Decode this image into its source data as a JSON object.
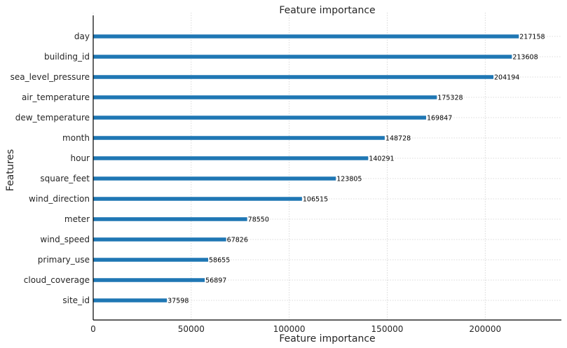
{
  "chart_data": {
    "type": "bar",
    "orientation": "horizontal",
    "title": "Feature importance",
    "xlabel": "Feature importance",
    "ylabel": "Features",
    "categories": [
      "day",
      "building_id",
      "sea_level_pressure",
      "air_temperature",
      "dew_temperature",
      "month",
      "hour",
      "square_feet",
      "wind_direction",
      "meter",
      "wind_speed",
      "primary_use",
      "cloud_coverage",
      "site_id"
    ],
    "values": [
      217158,
      213608,
      204194,
      175328,
      169847,
      148728,
      140291,
      123805,
      106515,
      78550,
      67826,
      58655,
      56897,
      37598
    ],
    "xlim": [
      0,
      238874
    ],
    "xticks": [
      0,
      50000,
      100000,
      150000,
      200000
    ],
    "grid": true,
    "bar_color": "#1f77b4"
  }
}
